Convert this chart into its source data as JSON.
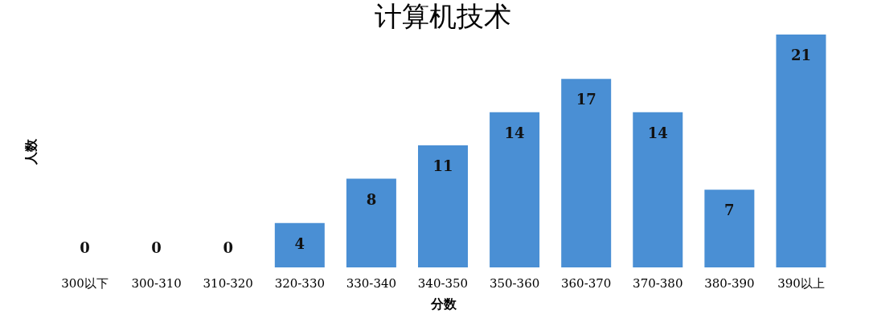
{
  "chart_data": {
    "type": "bar",
    "title": "计算机技术",
    "xlabel": "分数",
    "ylabel": "人数",
    "categories": [
      "300以下",
      "300-310",
      "310-320",
      "320-330",
      "330-340",
      "340-350",
      "350-360",
      "360-370",
      "370-380",
      "380-390",
      "390以上"
    ],
    "values": [
      0,
      0,
      0,
      4,
      8,
      11,
      14,
      17,
      14,
      7,
      21
    ],
    "color": "#4a8fd4",
    "data_labels": true,
    "grid": false
  }
}
